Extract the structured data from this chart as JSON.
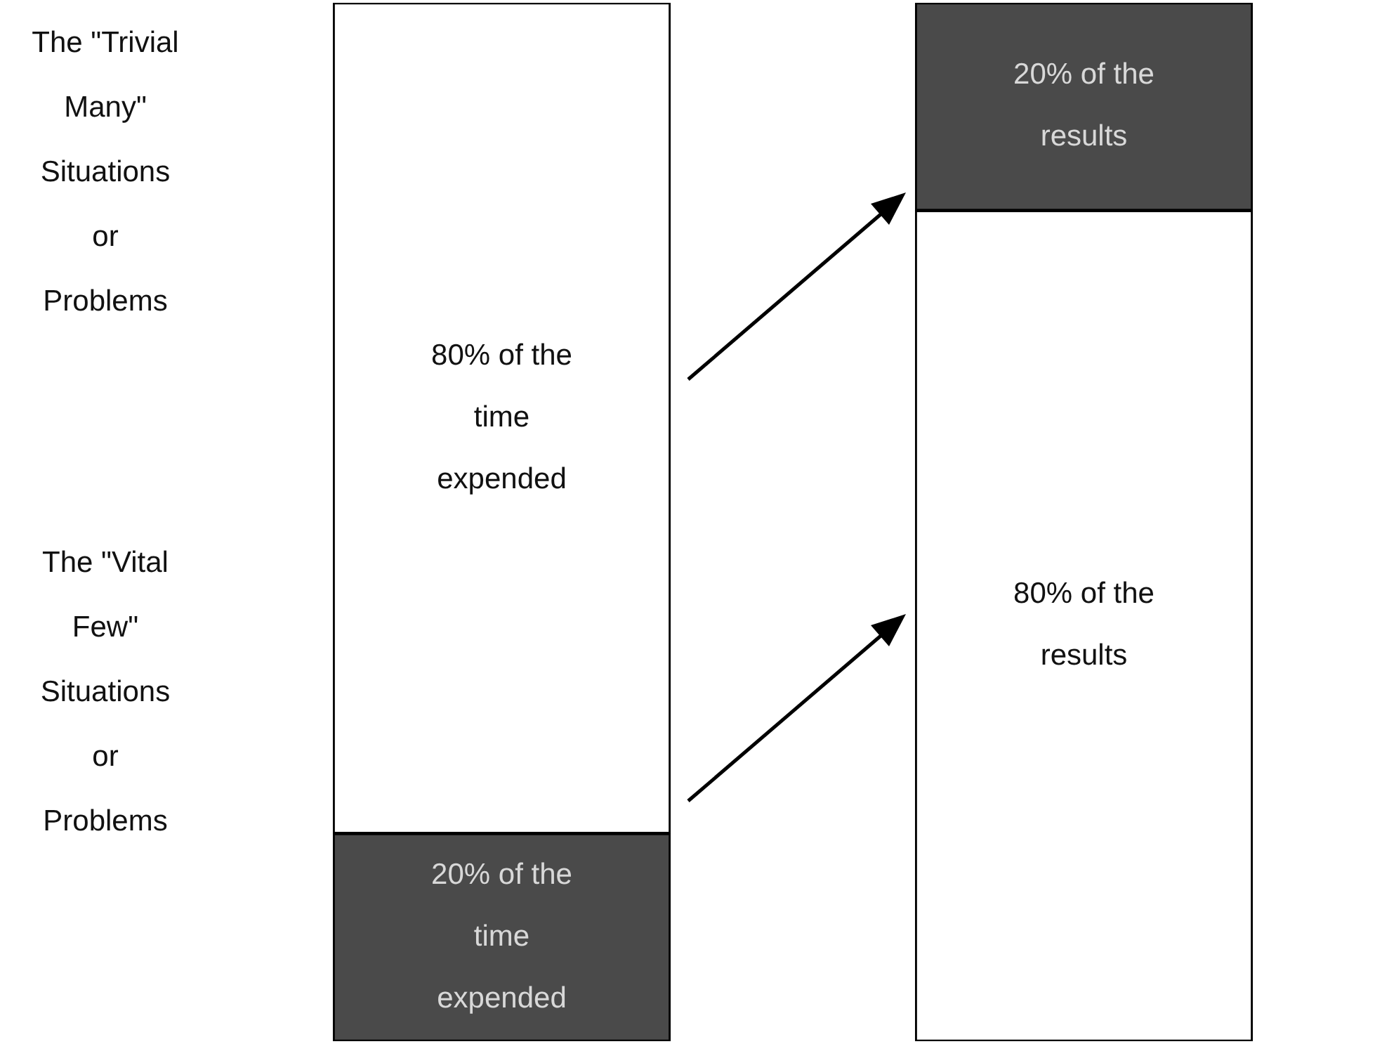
{
  "chart_data": {
    "type": "bar",
    "categories": [
      null,
      null
    ],
    "stacked": true,
    "ylim": [
      0,
      100
    ],
    "tick_labels": false,
    "legend": false,
    "series": [
      {
        "colors": [
          "#4a4a4a",
          "#ffffff"
        ],
        "values": [
          20,
          80
        ],
        "value_labels": [
          "20% of the time expended",
          "80% of the results"
        ]
      },
      {
        "colors": [
          "#ffffff",
          "#4a4a4a"
        ],
        "values": [
          80,
          20
        ],
        "value_labels": [
          "80% of the time expended",
          "20% of the results"
        ]
      }
    ],
    "annotations": [
      "The \"Trivial Many\" Situations or Problems",
      "The \"Vital Few\" Situations or Problems"
    ]
  }
}
